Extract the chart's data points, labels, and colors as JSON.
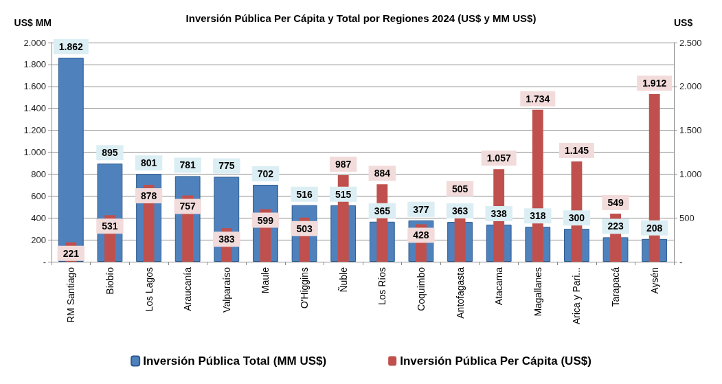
{
  "chart_data": {
    "type": "bar",
    "title": "Inversión Pública Per Cápita y Total por Regiones 2024 (US$ y MM US$)",
    "ylabel": "US$ MM",
    "y2label": "US$",
    "categories": [
      "RM Santiago",
      "Biobío",
      "Los Lagos",
      "Araucanía",
      "Valparaíso",
      "Maule",
      "O'Higgins",
      "Ñuble",
      "Los Ríos",
      "Coquimbo",
      "Antofagasta",
      "Atacama",
      "Magallanes",
      "Arica y Pari...",
      "Tarapacá",
      "Aysén"
    ],
    "series": [
      {
        "name": "Inversión Pública Total (MM US$)",
        "color": "#4f81bd",
        "values": [
          1862,
          895,
          801,
          781,
          775,
          702,
          516,
          515,
          365,
          377,
          363,
          338,
          318,
          300,
          223,
          208
        ],
        "value_labels": [
          "1.862",
          "895",
          "801",
          "781",
          "775",
          "702",
          "516",
          "515",
          "365",
          "377",
          "363",
          "338",
          "318",
          "300",
          "223",
          "208"
        ]
      },
      {
        "name": "Inversión Pública Per Cápita (US$)",
        "color": "#c0504d",
        "axis": "y2",
        "values": [
          221,
          531,
          878,
          757,
          383,
          599,
          503,
          987,
          884,
          428,
          505,
          1057,
          1734,
          1145,
          549,
          1912
        ],
        "value_labels": [
          "221",
          "531",
          "878",
          "757",
          "383",
          "599",
          "503",
          "987",
          "884",
          "428",
          "505",
          "1.057",
          "1.734",
          "1.145",
          "549",
          "1.912"
        ]
      }
    ],
    "ylim": [
      0,
      2000
    ],
    "yticks": [
      {
        "value": 0,
        "label": "-"
      },
      200,
      400,
      600,
      800,
      {
        "value": 1000,
        "label": "1.000"
      },
      {
        "value": 1200,
        "label": "1.200"
      },
      {
        "value": 1400,
        "label": "1.400"
      },
      {
        "value": 1600,
        "label": "1.600"
      },
      {
        "value": 1800,
        "label": "1.800"
      },
      {
        "value": 2000,
        "label": "2.000"
      }
    ],
    "y2lim": [
      0,
      2500
    ],
    "y2ticks": [
      {
        "value": 0,
        "label": "-"
      },
      500,
      {
        "value": 1000,
        "label": "1.000"
      },
      {
        "value": 1500,
        "label": "1.500"
      },
      {
        "value": 2000,
        "label": "2.000"
      },
      {
        "value": 2500,
        "label": "2.500"
      }
    ],
    "grid": "y",
    "legend": "bottom"
  }
}
